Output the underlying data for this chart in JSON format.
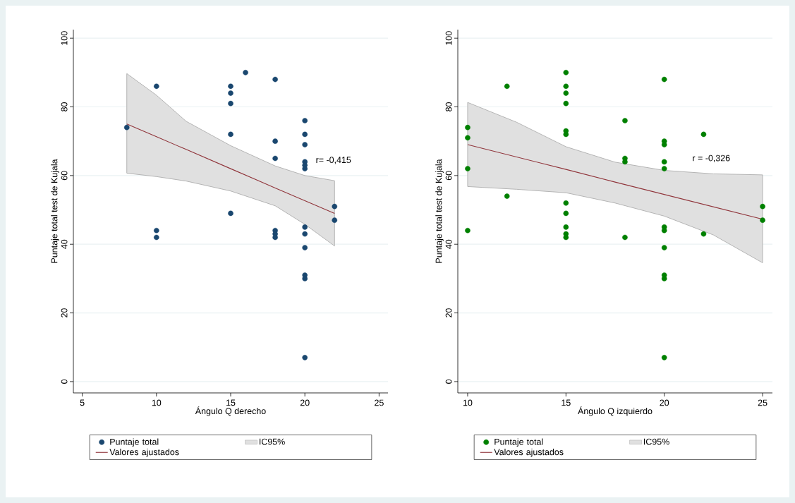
{
  "chart_data": [
    {
      "type": "scatter",
      "xlabel": "Ángulo Q derecho",
      "ylabel": "Puntaje total test de Kujala",
      "xlim": [
        4.4,
        25.6
      ],
      "ylim": [
        -3.3,
        102.5
      ],
      "xticks": [
        5,
        10,
        15,
        20,
        25
      ],
      "yticks": [
        0,
        20,
        40,
        60,
        80,
        100
      ],
      "grid": "y",
      "legend": "bottom",
      "annotations": [
        "r= -0,415"
      ],
      "series": [
        {
          "name": "Puntaje total",
          "type": "scatter",
          "marker": "circle",
          "color": "#1a476f",
          "x": [
            8,
            10,
            10,
            10,
            15,
            15,
            15,
            15,
            15,
            16,
            18,
            18,
            18,
            18,
            18,
            18,
            20,
            20,
            20,
            20,
            20,
            20,
            20,
            20,
            20,
            20,
            20,
            20,
            22,
            22
          ],
          "values": [
            74,
            86,
            44,
            42,
            86,
            84,
            81,
            72,
            49,
            90,
            88,
            70,
            65,
            44,
            43,
            42,
            76,
            72,
            69,
            64,
            63,
            62,
            45,
            43,
            39,
            31,
            30,
            7,
            51,
            47
          ]
        },
        {
          "name": "IC95%",
          "type": "area",
          "color": "#e0e0e0"
        },
        {
          "name": "Valores ajustados",
          "type": "line",
          "marker": "none",
          "color": "#90353b",
          "x": [
            8,
            10,
            12,
            15,
            18,
            20,
            22
          ],
          "values": [
            75,
            71.3,
            67.6,
            62,
            56.4,
            52.7,
            49
          ],
          "lower": [
            60.7,
            59.7,
            58.4,
            55.5,
            51.2,
            45.8,
            39.5
          ],
          "upper": [
            89.7,
            83.4,
            75.8,
            68.7,
            62.8,
            60,
            58.5
          ]
        }
      ]
    },
    {
      "type": "scatter",
      "xlabel": "Ángulo Q izquierdo",
      "ylabel": "Puntaje total test de Kujala",
      "xlim": [
        9.5,
        25.5
      ],
      "ylim": [
        -3.3,
        102.5
      ],
      "xticks": [
        10,
        15,
        20,
        25
      ],
      "yticks": [
        0,
        20,
        40,
        60,
        80,
        100
      ],
      "grid": "y",
      "legend": "bottom",
      "annotations": [
        "r = -0,326"
      ],
      "series": [
        {
          "name": "Puntaje total",
          "type": "scatter",
          "marker": "circle",
          "color": "#008000",
          "x": [
            10,
            10,
            10,
            10,
            12,
            12,
            15,
            15,
            15,
            15,
            15,
            15,
            15,
            15,
            15,
            15,
            15,
            18,
            18,
            18,
            18,
            20,
            20,
            20,
            20,
            20,
            20,
            20,
            20,
            20,
            20,
            20,
            22,
            22,
            25,
            25
          ],
          "values": [
            74,
            71,
            62,
            44,
            86,
            54,
            90,
            86,
            84,
            81,
            73,
            72,
            52,
            49,
            45,
            43,
            42,
            76,
            65,
            64,
            42,
            88,
            70,
            69,
            64,
            62,
            45,
            44,
            39,
            31,
            30,
            7,
            72,
            43,
            51,
            47
          ]
        },
        {
          "name": "IC95%",
          "type": "area",
          "color": "#e0e0e0"
        },
        {
          "name": "Valores ajustados",
          "type": "line",
          "marker": "none",
          "color": "#90353b",
          "x": [
            10,
            12.5,
            15,
            17.5,
            20,
            22.5,
            25
          ],
          "values": [
            69,
            65.4,
            61.8,
            58.1,
            54.5,
            50.9,
            47.3
          ],
          "lower": [
            56.8,
            56,
            55,
            52,
            48.2,
            42.7,
            34.6
          ],
          "upper": [
            81.3,
            75.5,
            68.4,
            63.9,
            61.5,
            60.5,
            60.2
          ]
        }
      ]
    }
  ]
}
